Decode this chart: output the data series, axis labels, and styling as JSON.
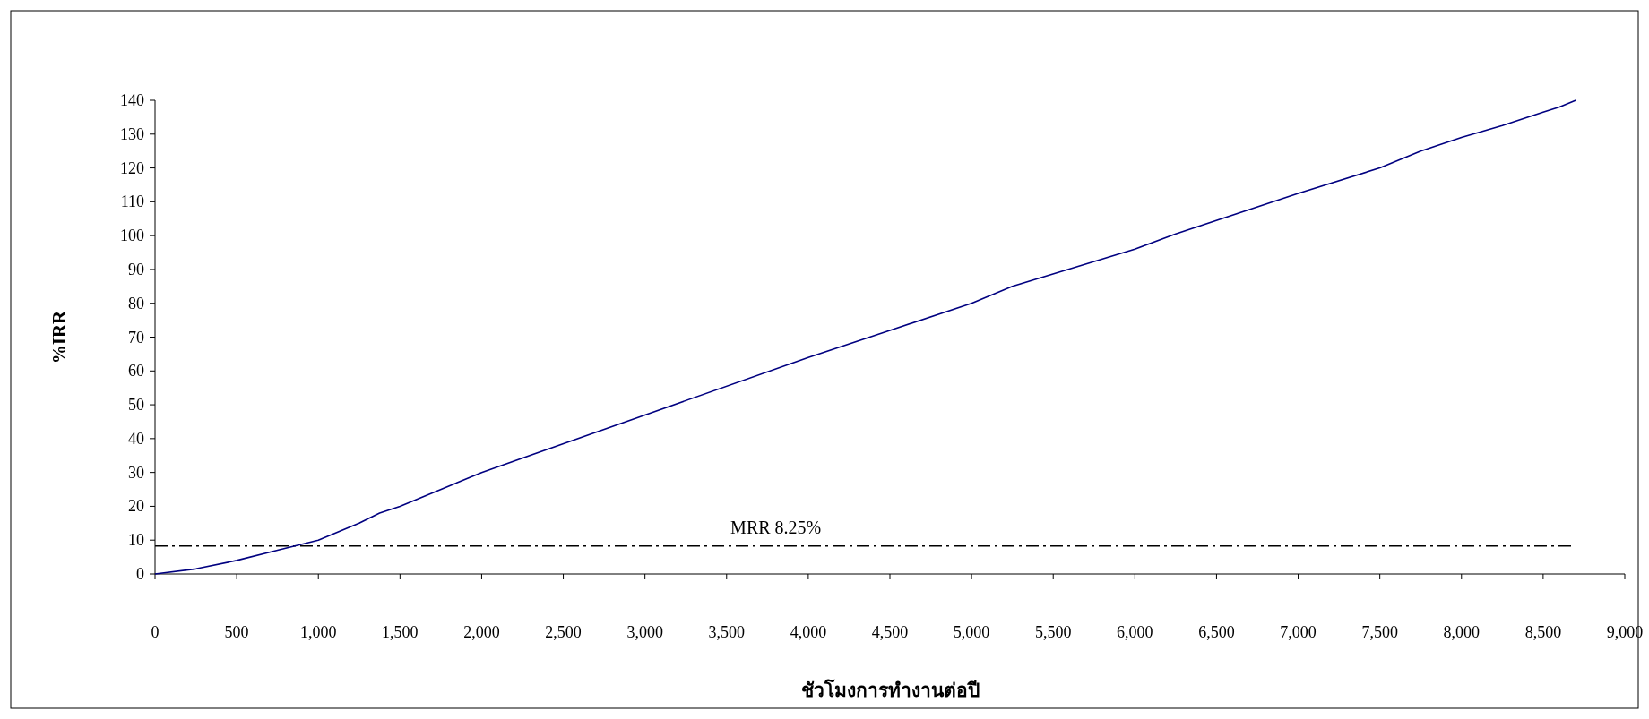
{
  "chart_data": {
    "type": "line",
    "xlabel": "ชัวโมงการทำงานต่อปี",
    "ylabel": "%IRR",
    "x": [
      0,
      250,
      500,
      750,
      1000,
      1250,
      1375,
      1500,
      2000,
      3000,
      4000,
      4500,
      5000,
      5250,
      6000,
      6250,
      7000,
      7500,
      7750,
      8000,
      8250,
      8500,
      8600,
      8700
    ],
    "series": [
      {
        "color": "#000080",
        "values": [
          0,
          1.5,
          4,
          7,
          10,
          15,
          18,
          20,
          30,
          47,
          64,
          72,
          80,
          85,
          96,
          100.5,
          112.5,
          120,
          125,
          129,
          132.5,
          136.5,
          138,
          140
        ]
      }
    ],
    "xlim": [
      0,
      9000
    ],
    "xticks": [
      {
        "value": 0,
        "label": "0"
      },
      {
        "value": 500,
        "label": "500"
      },
      {
        "value": 1000,
        "label": "1,000"
      },
      {
        "value": 1500,
        "label": "1,500"
      },
      {
        "value": 2000,
        "label": "2,000"
      },
      {
        "value": 2500,
        "label": "2,500"
      },
      {
        "value": 3000,
        "label": "3,000"
      },
      {
        "value": 3500,
        "label": "3,500"
      },
      {
        "value": 4000,
        "label": "4,000"
      },
      {
        "value": 4500,
        "label": "4,500"
      },
      {
        "value": 5000,
        "label": "5,000"
      },
      {
        "value": 5500,
        "label": "5,500"
      },
      {
        "value": 6000,
        "label": "6,000"
      },
      {
        "value": 6500,
        "label": "6,500"
      },
      {
        "value": 7000,
        "label": "7,000"
      },
      {
        "value": 7500,
        "label": "7,500"
      },
      {
        "value": 8000,
        "label": "8,000"
      },
      {
        "value": 8500,
        "label": "8,500"
      },
      {
        "value": 9000,
        "label": "9,000"
      }
    ],
    "ylim": [
      0,
      140
    ],
    "yticks": [
      0,
      10,
      20,
      30,
      40,
      50,
      60,
      70,
      80,
      90,
      100,
      110,
      120,
      130,
      140
    ],
    "ref_lines": [
      {
        "axis": "y",
        "value": 8.25,
        "label": "MRR 8.25%",
        "color": "#000000",
        "line_style": "dashdot"
      }
    ],
    "grid": false,
    "marker": "none",
    "line_style": "solid"
  }
}
